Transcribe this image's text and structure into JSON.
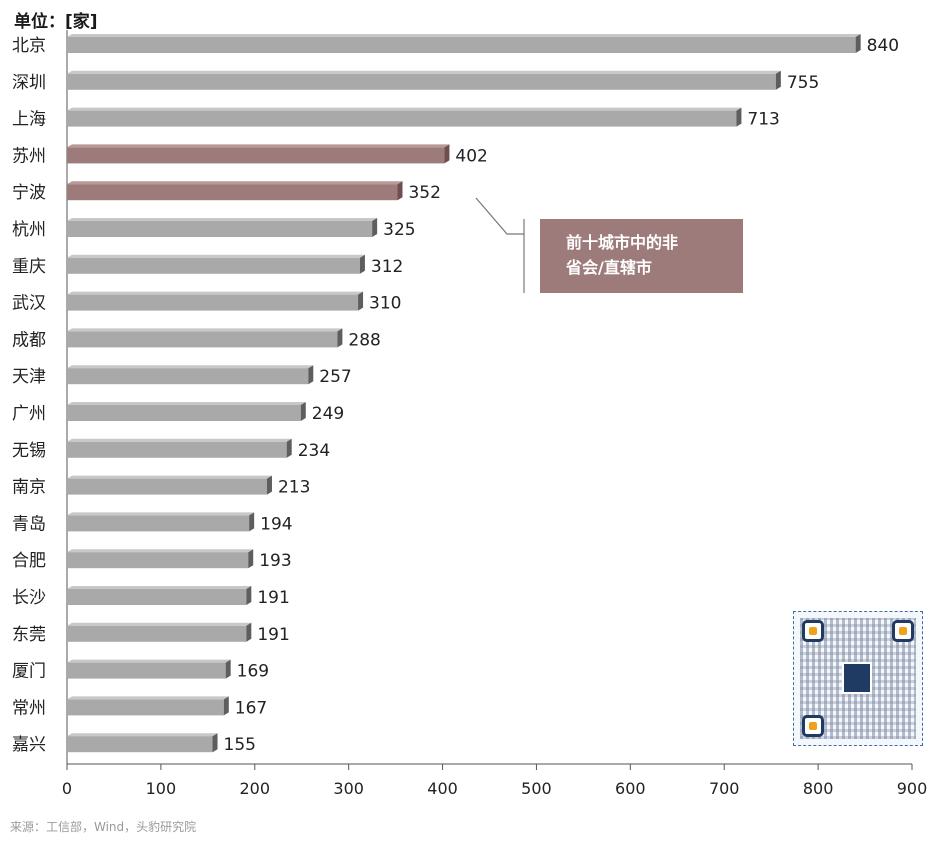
{
  "header": {
    "unit_label": "单位：[家]"
  },
  "chart_data": {
    "type": "bar",
    "orientation": "horizontal",
    "categories": [
      "北京",
      "深圳",
      "上海",
      "苏州",
      "宁波",
      "杭州",
      "重庆",
      "武汉",
      "成都",
      "天津",
      "广州",
      "无锡",
      "南京",
      "青岛",
      "合肥",
      "长沙",
      "东莞",
      "厦门",
      "常州",
      "嘉兴"
    ],
    "values": [
      840,
      755,
      713,
      402,
      352,
      325,
      312,
      310,
      288,
      257,
      249,
      234,
      213,
      194,
      193,
      191,
      191,
      169,
      167,
      155
    ],
    "highlight": [
      "苏州",
      "宁波"
    ],
    "xlim": [
      0,
      900
    ],
    "xticks": [
      0,
      100,
      200,
      300,
      400,
      500,
      600,
      700,
      800,
      900
    ],
    "grid": false,
    "colors": {
      "bar": "#a9a9a9",
      "bar_highlight": "#9e7b7b"
    }
  },
  "annotation": {
    "line1": "前十城市中的非",
    "line2": "省会/直辖市"
  },
  "source": "来源：工信部，Wind，头豹研究院",
  "qr_code": {
    "icon": "qr-code-icon"
  }
}
